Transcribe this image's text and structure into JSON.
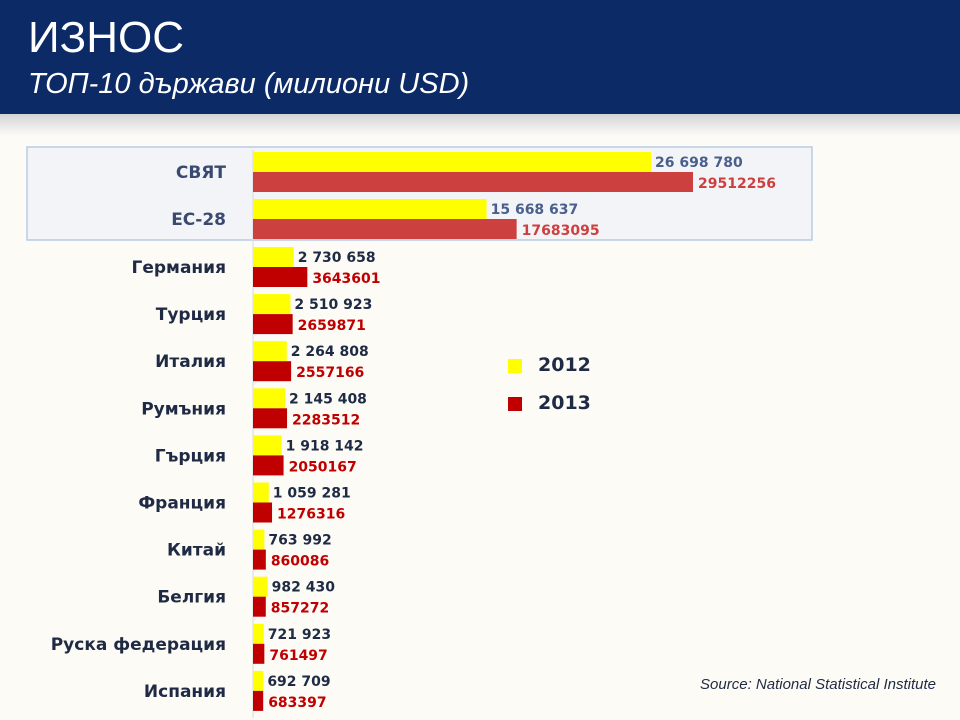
{
  "header": {
    "title": "ИЗНОС",
    "subtitle": "ТОП-10 държави (милиони USD)"
  },
  "source": "Source: National Statistical Institute",
  "colors": {
    "header_bg": "#0b2a66",
    "bar_2012": "#ffff00",
    "bar_2013_top": "#cc4040",
    "bar_2013": "#c00000",
    "label_dark": "#1f2a44",
    "label_top_2012": "#4a5f8c",
    "highlight_border": "#b7cde6",
    "highlight_fill": "#f3f4f8"
  },
  "chart_data": {
    "type": "bar",
    "orientation": "horizontal",
    "categories": [
      "СВЯТ",
      "ЕС-28",
      "Германия",
      "Турция",
      "Италия",
      "Румъния",
      "Гърция",
      "Франция",
      "Китай",
      "Белгия",
      "Руска федерация",
      "Испания"
    ],
    "highlighted_categories": [
      "СВЯТ",
      "ЕС-28"
    ],
    "series": [
      {
        "name": "2012",
        "values": [
          26698780,
          15668637,
          2730658,
          2510923,
          2264808,
          2145408,
          1918142,
          1059281,
          763992,
          982430,
          721923,
          692709
        ],
        "labels": [
          "26 698 780",
          "15 668 637",
          "2 730 658",
          "2 510 923",
          "2 264 808",
          "2 145 408",
          "1 918 142",
          "1 059 281",
          "763 992",
          "982 430",
          "721 923",
          "692 709"
        ]
      },
      {
        "name": "2013",
        "values": [
          29512256,
          17683095,
          3643601,
          2659871,
          2557166,
          2283512,
          2050167,
          1276316,
          860086,
          857272,
          761497,
          683397
        ],
        "labels": [
          "29512256",
          "17683095",
          "3643601",
          "2659871",
          "2557166",
          "2283512",
          "2050167",
          "1276316",
          "860086",
          "857272",
          "761497",
          "683397"
        ]
      }
    ],
    "xlim": [
      0,
      29512256
    ],
    "grid": false,
    "legend_position": "center-right"
  }
}
